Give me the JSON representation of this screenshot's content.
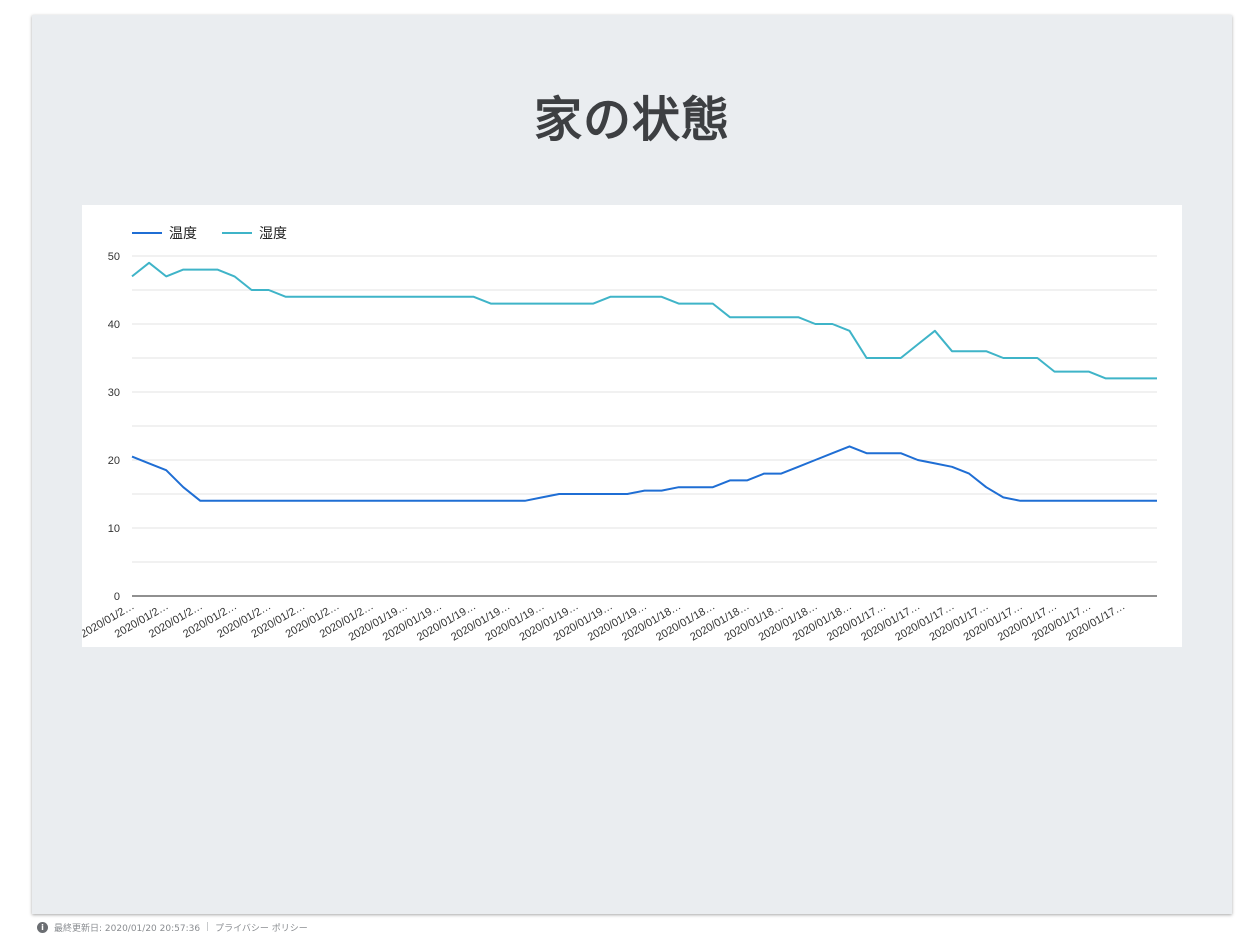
{
  "report": {
    "title": "家の状態"
  },
  "footer": {
    "updated": "最終更新日: 2020/01/20 20:57:36",
    "link": "プライバシー ポリシー"
  },
  "chart_data": {
    "type": "line",
    "title": "",
    "xlabel": "",
    "ylabel": "",
    "ylim": [
      0,
      50
    ],
    "yticks": [
      0,
      10,
      20,
      30,
      40,
      50
    ],
    "grid": true,
    "legend_position": "top-left",
    "x_tick_labels": [
      "2020/01/2…",
      "2020/01/2…",
      "2020/01/2…",
      "2020/01/2…",
      "2020/01/2…",
      "2020/01/2…",
      "2020/01/2…",
      "2020/01/2…",
      "2020/01/19…",
      "2020/01/19…",
      "2020/01/19…",
      "2020/01/19…",
      "2020/01/19…",
      "2020/01/19…",
      "2020/01/19…",
      "2020/01/19…",
      "2020/01/18…",
      "2020/01/18…",
      "2020/01/18…",
      "2020/01/18…",
      "2020/01/18…",
      "2020/01/18…",
      "2020/01/17…",
      "2020/01/17…",
      "2020/01/17…",
      "2020/01/17…",
      "2020/01/17…",
      "2020/01/17…",
      "2020/01/17…",
      "2020/01/17…"
    ],
    "x": [
      0,
      5,
      10,
      15,
      20,
      25,
      30,
      35,
      40,
      45,
      50,
      55,
      60,
      65,
      70,
      75,
      80,
      85,
      90,
      95,
      100,
      105,
      110,
      115,
      120,
      125,
      130,
      135,
      140,
      145,
      150,
      155,
      160,
      165,
      170,
      175,
      180,
      185,
      190,
      195,
      200,
      205,
      210,
      215,
      220,
      225,
      230,
      235,
      240,
      245,
      250,
      255,
      260,
      265,
      270,
      275,
      280,
      285,
      290,
      295,
      300
    ],
    "series": [
      {
        "name": "温度",
        "color": "#1f6ed4",
        "values": [
          20.5,
          19.5,
          18.5,
          16,
          14,
          14,
          14,
          14,
          14,
          14,
          14,
          14,
          14,
          14,
          14,
          14,
          14,
          14,
          14,
          14,
          14,
          14,
          14,
          14,
          14.5,
          15,
          15,
          15,
          15,
          15,
          15.5,
          15.5,
          16,
          16,
          16,
          17,
          17,
          18,
          18,
          19,
          20,
          21,
          22,
          21,
          21,
          21,
          20,
          19.5,
          19,
          18,
          16,
          14.5,
          14,
          14,
          14,
          14,
          14,
          14,
          14,
          14,
          14
        ]
      },
      {
        "name": "湿度",
        "color": "#3fb4c8",
        "values": [
          47,
          49,
          47,
          48,
          48,
          48,
          47,
          45,
          45,
          44,
          44,
          44,
          44,
          44,
          44,
          44,
          44,
          44,
          44,
          44,
          44,
          43,
          43,
          43,
          43,
          43,
          43,
          43,
          44,
          44,
          44,
          44,
          43,
          43,
          43,
          41,
          41,
          41,
          41,
          41,
          40,
          40,
          39,
          35,
          35,
          35,
          37,
          39,
          36,
          36,
          36,
          35,
          35,
          35,
          33,
          33,
          33,
          32,
          32,
          32,
          32
        ]
      }
    ]
  }
}
